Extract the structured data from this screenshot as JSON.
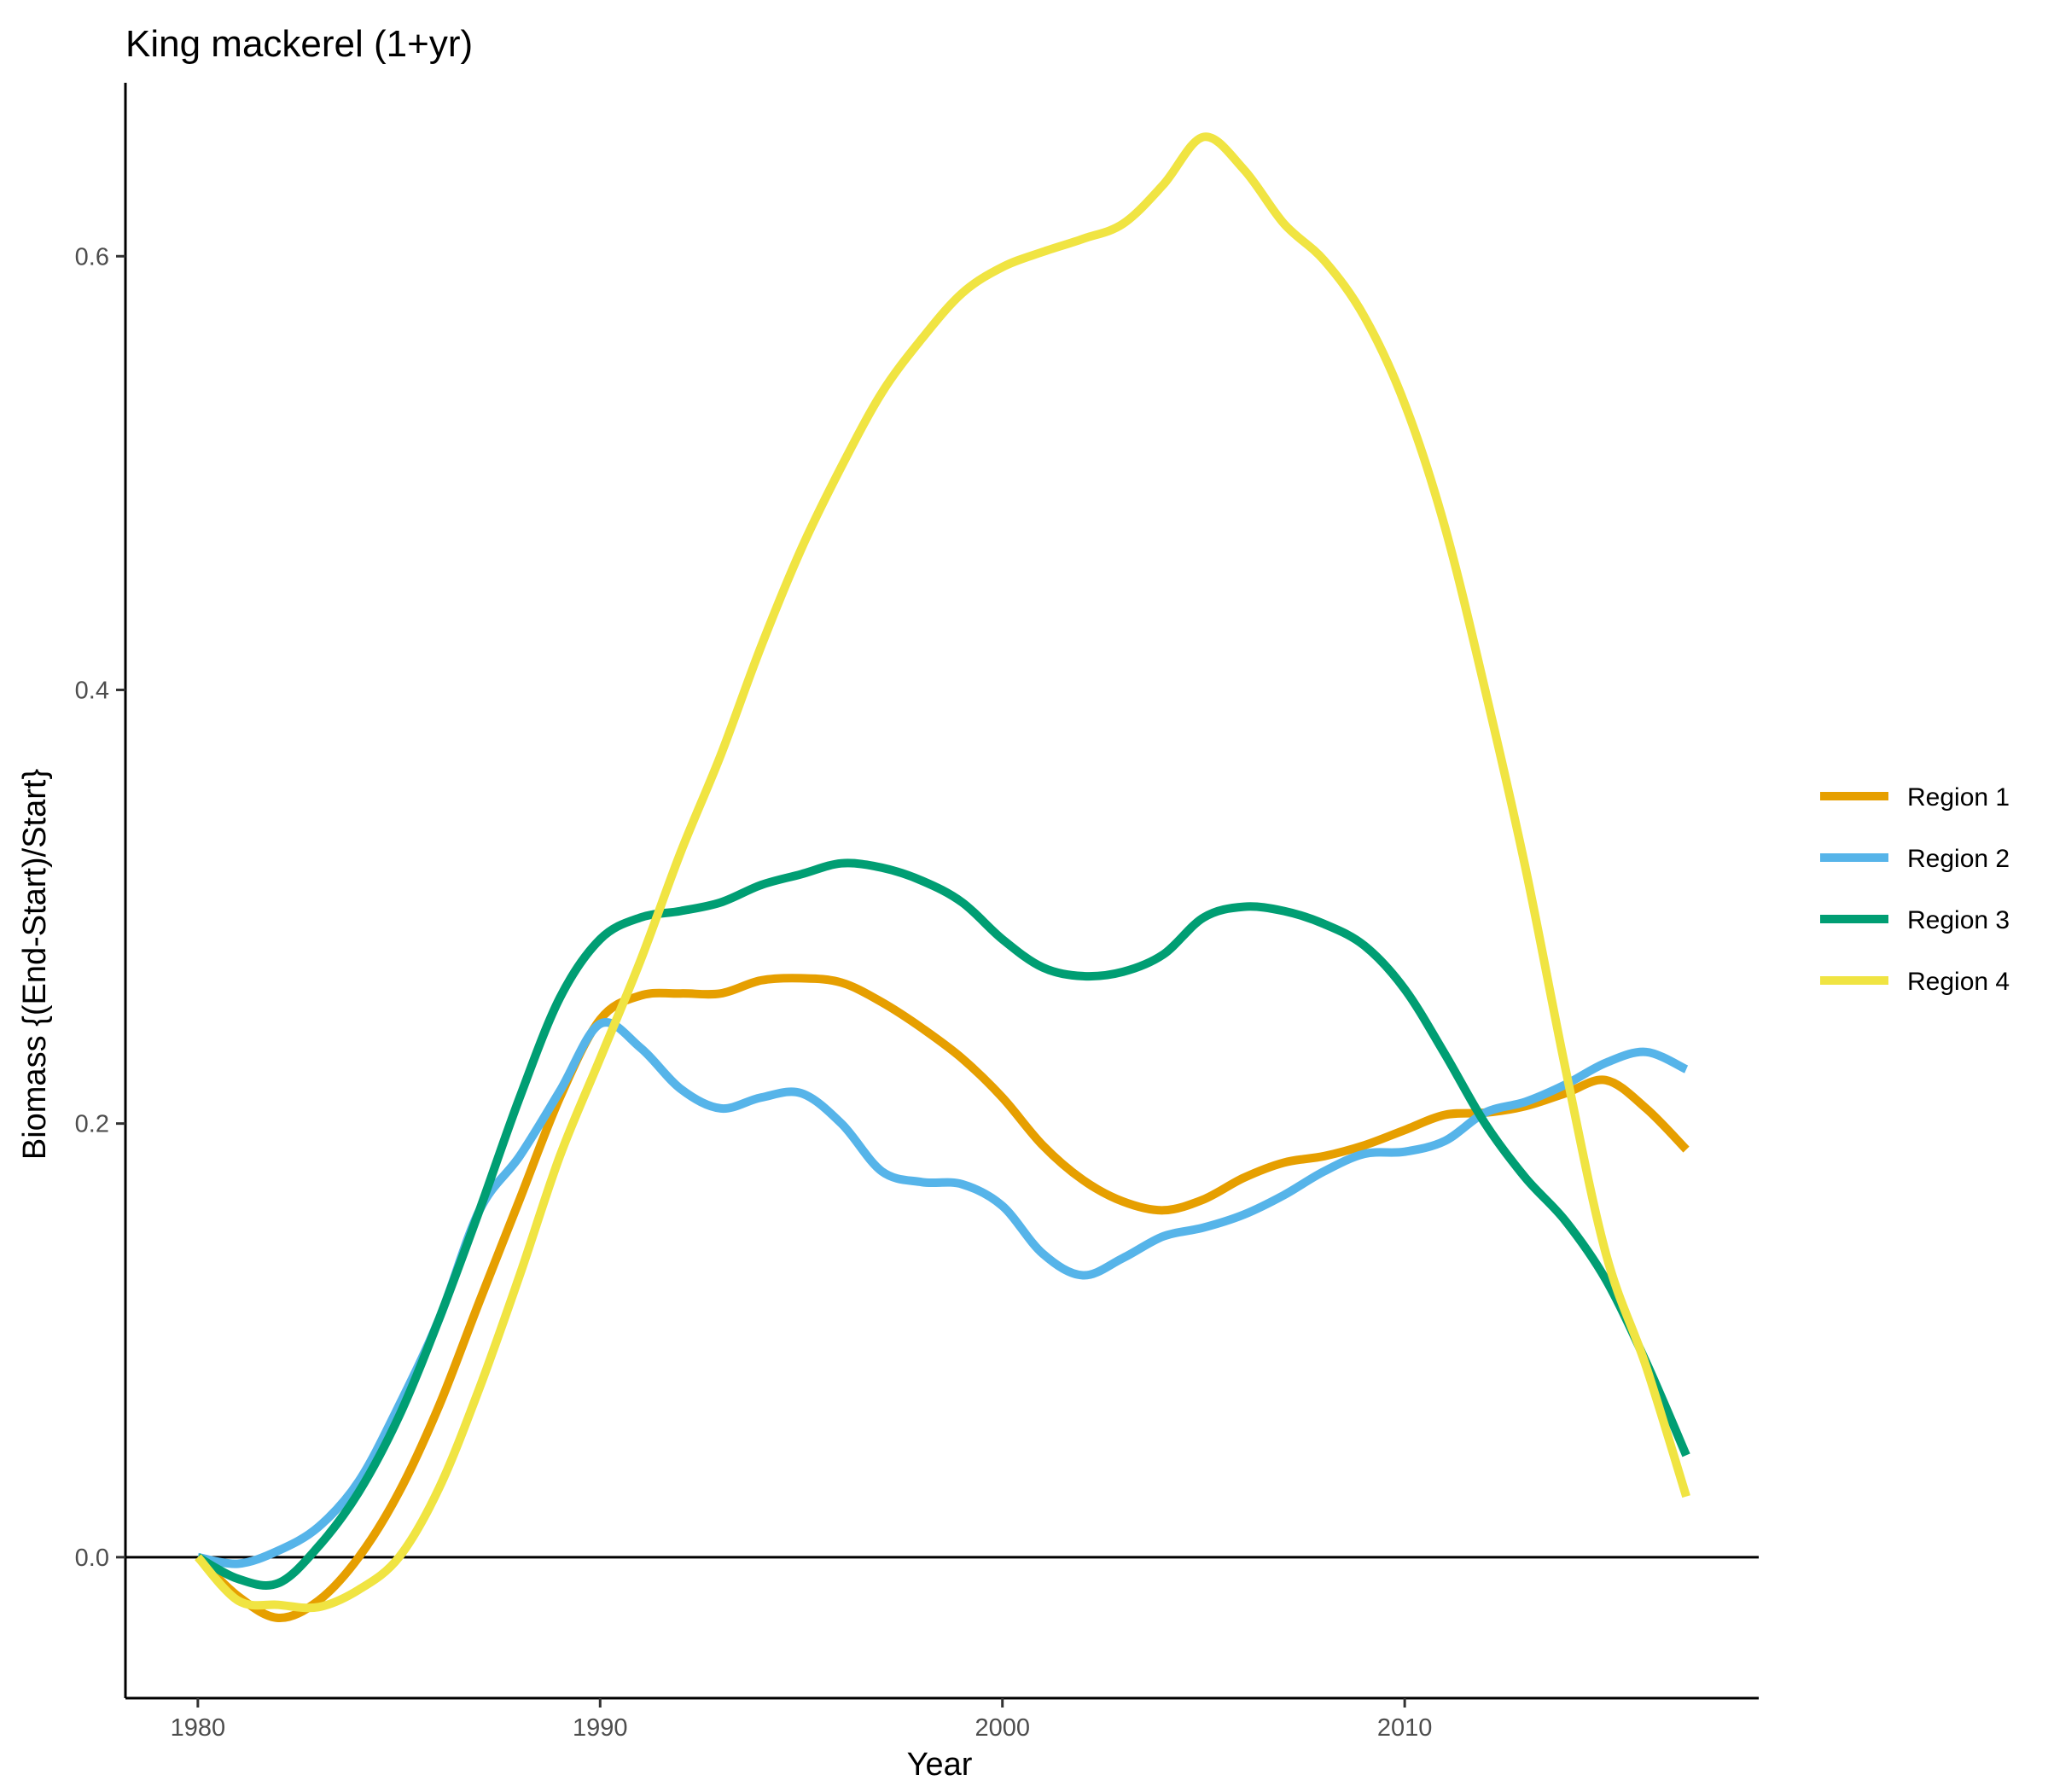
{
  "chart_data": {
    "type": "line",
    "title": "King mackerel (1+yr)",
    "xlabel": "Year",
    "ylabel": "Biomass {(End-Start)/Start}",
    "xlim": [
      1978.2,
      2018.8
    ],
    "ylim": [
      -0.065,
      0.68
    ],
    "x_ticks": [
      1980,
      1990,
      2000,
      2010
    ],
    "y_ticks": [
      0.0,
      0.2,
      0.4,
      0.6
    ],
    "x_tick_labels": [
      "1980",
      "1990",
      "2000",
      "2010"
    ],
    "y_tick_labels": [
      "0.0",
      "0.2",
      "0.4",
      "0.6"
    ],
    "reference_line": 0.0,
    "grid": false,
    "legend_position": "right",
    "series": [
      {
        "name": "Region 1",
        "color": "#E69F00",
        "x": [
          1980,
          1981,
          1982,
          1983,
          1984,
          1985,
          1986,
          1987,
          1988,
          1989,
          1990,
          1991,
          1992,
          1993,
          1994,
          1995,
          1996,
          1997,
          1998,
          1999,
          2000,
          2001,
          2002,
          2003,
          2004,
          2005,
          2006,
          2007,
          2008,
          2009,
          2010,
          2011,
          2012,
          2013,
          2014,
          2015,
          2016,
          2017
        ],
        "y": [
          0.0,
          -0.018,
          -0.028,
          -0.02,
          0.0,
          0.03,
          0.07,
          0.118,
          0.165,
          0.212,
          0.248,
          0.259,
          0.26,
          0.26,
          0.266,
          0.267,
          0.265,
          0.256,
          0.244,
          0.23,
          0.212,
          0.19,
          0.174,
          0.164,
          0.16,
          0.165,
          0.175,
          0.182,
          0.185,
          0.19,
          0.197,
          0.204,
          0.205,
          0.208,
          0.214,
          0.22,
          0.207,
          0.188
        ]
      },
      {
        "name": "Region 2",
        "color": "#56B4E9",
        "x": [
          1980,
          1981,
          1982,
          1983,
          1984,
          1985,
          1986,
          1987,
          1988,
          1989,
          1990,
          1991,
          1992,
          1993,
          1994,
          1995,
          1996,
          1997,
          1998,
          1999,
          2000,
          2001,
          2002,
          2003,
          2004,
          2005,
          2006,
          2007,
          2008,
          2009,
          2010,
          2011,
          2012,
          2013,
          2014,
          2015,
          2016,
          2017
        ],
        "y": [
          0.0,
          -0.003,
          0.003,
          0.014,
          0.035,
          0.07,
          0.11,
          0.16,
          0.185,
          0.215,
          0.246,
          0.235,
          0.216,
          0.207,
          0.212,
          0.214,
          0.2,
          0.178,
          0.173,
          0.172,
          0.162,
          0.14,
          0.13,
          0.138,
          0.148,
          0.152,
          0.158,
          0.167,
          0.178,
          0.186,
          0.187,
          0.192,
          0.205,
          0.21,
          0.218,
          0.228,
          0.233,
          0.225
        ]
      },
      {
        "name": "Region 3",
        "color": "#009E73",
        "x": [
          1980,
          1981,
          1982,
          1983,
          1984,
          1985,
          1986,
          1987,
          1988,
          1989,
          1990,
          1991,
          1992,
          1993,
          1994,
          1995,
          1996,
          1997,
          1998,
          1999,
          2000,
          2001,
          2002,
          2003,
          2004,
          2005,
          2006,
          2007,
          2008,
          2009,
          2010,
          2011,
          2012,
          2013,
          2014,
          2015,
          2016,
          2017
        ],
        "y": [
          0.0,
          -0.01,
          -0.012,
          0.005,
          0.03,
          0.065,
          0.11,
          0.16,
          0.212,
          0.258,
          0.285,
          0.295,
          0.298,
          0.302,
          0.31,
          0.315,
          0.32,
          0.318,
          0.312,
          0.302,
          0.285,
          0.272,
          0.268,
          0.27,
          0.278,
          0.295,
          0.3,
          0.298,
          0.292,
          0.282,
          0.262,
          0.232,
          0.2,
          0.175,
          0.155,
          0.128,
          0.09,
          0.047
        ]
      },
      {
        "name": "Region 4",
        "color": "#F0E442",
        "x": [
          1980,
          1981,
          1982,
          1983,
          1984,
          1985,
          1986,
          1987,
          1988,
          1989,
          1990,
          1991,
          1992,
          1993,
          1994,
          1995,
          1996,
          1997,
          1998,
          1999,
          2000,
          2001,
          2002,
          2003,
          2004,
          2005,
          2006,
          2007,
          2008,
          2009,
          2010,
          2011,
          2012,
          2013,
          2014,
          2015,
          2016,
          2017
        ],
        "y": [
          0.0,
          -0.02,
          -0.022,
          -0.023,
          -0.015,
          0.0,
          0.032,
          0.078,
          0.13,
          0.185,
          0.23,
          0.275,
          0.325,
          0.37,
          0.42,
          0.465,
          0.503,
          0.537,
          0.562,
          0.583,
          0.595,
          0.602,
          0.608,
          0.615,
          0.633,
          0.655,
          0.64,
          0.615,
          0.598,
          0.572,
          0.532,
          0.475,
          0.4,
          0.318,
          0.225,
          0.14,
          0.088,
          0.028
        ]
      }
    ]
  }
}
